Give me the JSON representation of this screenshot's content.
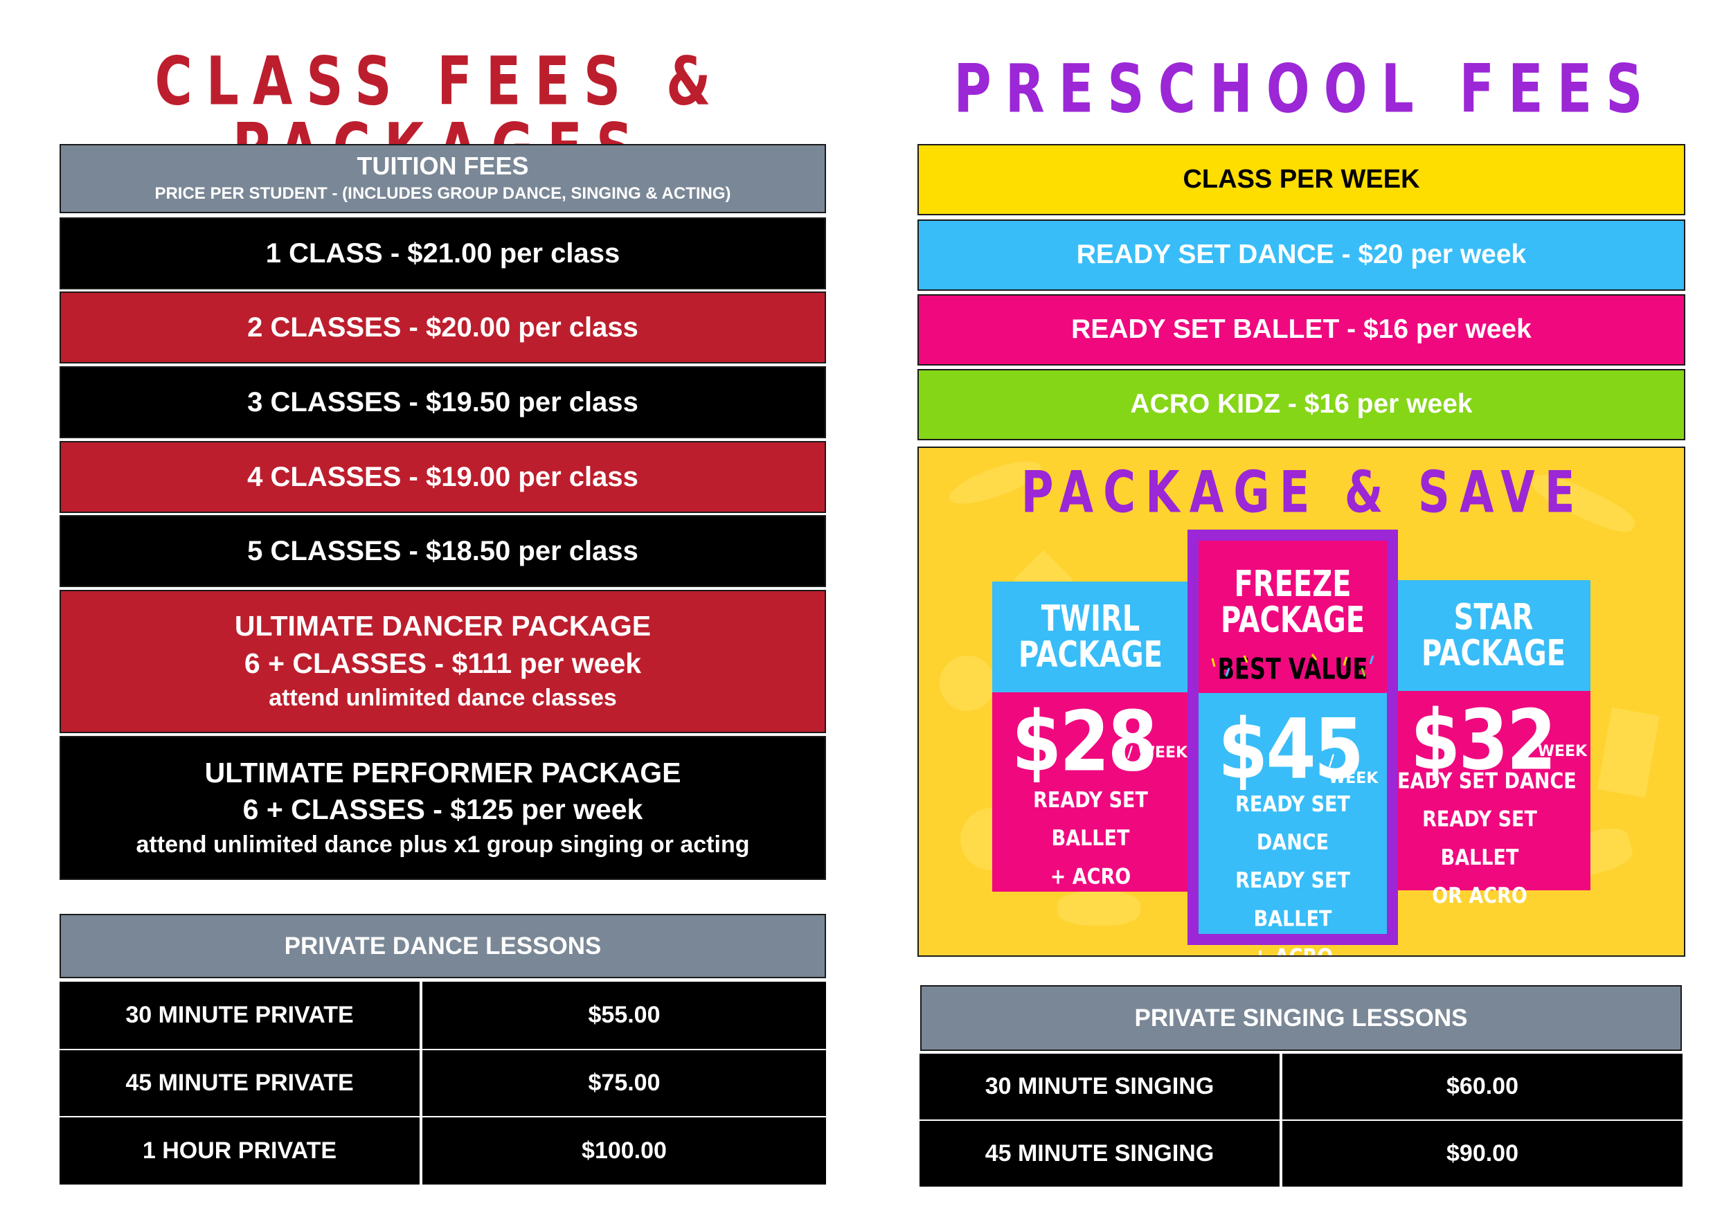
{
  "left": {
    "heading": "CLASS FEES & PACKAGES",
    "tuition": {
      "title": "TUITION FEES",
      "subtitle": "PRICE PER STUDENT - (INCLUDES GROUP DANCE, SINGING & ACTING)"
    },
    "rates": [
      "1 CLASS - $21.00 per class",
      "2 CLASSES - $20.00 per class",
      "3 CLASSES - $19.50 per class",
      "4 CLASSES - $19.00 per class",
      "5 CLASSES - $18.50 per class"
    ],
    "ultimate_dancer": {
      "title": "ULTIMATE DANCER PACKAGE",
      "price": "6 + CLASSES - $111 per week",
      "note": "attend unlimited dance classes"
    },
    "ultimate_performer": {
      "title": "ULTIMATE PERFORMER PACKAGE",
      "price": "6 + CLASSES - $125 per week",
      "note": "attend unlimited dance plus x1 group singing or acting"
    },
    "private_dance": {
      "title": "PRIVATE DANCE LESSONS",
      "rows": [
        {
          "label": "30 MINUTE PRIVATE",
          "price": "$55.00"
        },
        {
          "label": "45 MINUTE PRIVATE",
          "price": "$75.00"
        },
        {
          "label": "1 HOUR PRIVATE",
          "price": "$100.00"
        }
      ]
    }
  },
  "right": {
    "heading": "PRESCHOOL FEES",
    "class_header": "CLASS PER WEEK",
    "classes": [
      "READY SET DANCE - $20 per week",
      "READY SET BALLET - $16 per week",
      "ACRO KIDZ - $16 per week"
    ],
    "package_save": {
      "heading": "PACKAGE & SAVE",
      "twirl": {
        "title_line1": "TWIRL",
        "title_line2": "PACKAGE",
        "price": "$28",
        "per": "/ WEEK",
        "line1": "READY SET BALLET",
        "line2": "+ ACRO"
      },
      "freeze": {
        "title_line1": "FREEZE",
        "title_line2": "PACKAGE",
        "badge": "BEST VALUE",
        "price": "$45",
        "per": "/ WEEK",
        "line1": "READY SET DANCE",
        "line2": "READY SET BALLET",
        "line3": "+ ACRO"
      },
      "star": {
        "title_line1": "STAR",
        "title_line2": "PACKAGE",
        "price": "$32",
        "per": "/ WEEK",
        "line1": "READY SET DANCE",
        "line2": "READY SET BALLET",
        "line3": "OR ACRO"
      }
    },
    "private_singing": {
      "title": "PRIVATE SINGING LESSONS",
      "rows": [
        {
          "label": "30 MINUTE SINGING",
          "price": "$60.00"
        },
        {
          "label": "45 MINUTE SINGING",
          "price": "$90.00"
        }
      ]
    }
  },
  "colors": {
    "red": "#bd1e2d",
    "purple": "#9b27d6",
    "gray": "#7a8796",
    "yellow": "#fedd00",
    "blue": "#38bdf8",
    "pink": "#f0087f",
    "green": "#85d617"
  }
}
